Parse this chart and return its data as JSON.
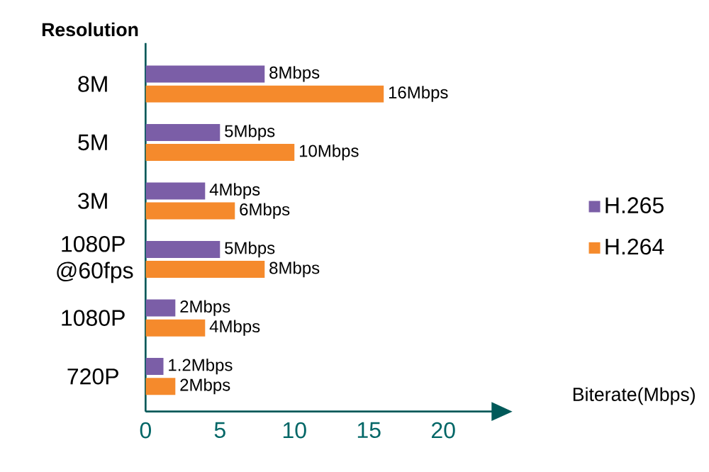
{
  "chart_data": {
    "type": "bar",
    "orientation": "horizontal",
    "ylabel": "Resolution",
    "xlabel": "Biterate(Mbps)",
    "categories": [
      "8M",
      "5M",
      "3M",
      "1080P @60fps",
      "1080P",
      "720P"
    ],
    "series": [
      {
        "name": "H.265",
        "color": "#7b5ea7",
        "values": [
          8,
          5,
          4,
          5,
          2,
          1.2
        ],
        "value_labels": [
          "8Mbps",
          "5Mbps",
          "4Mbps",
          "5Mbps",
          "2Mbps",
          "1.2Mbps"
        ]
      },
      {
        "name": "H.264",
        "color": "#f58a2c",
        "values": [
          16,
          10,
          6,
          8,
          4,
          2
        ],
        "value_labels": [
          "16Mbps",
          "10Mbps",
          "6Mbps",
          "8Mbps",
          "4Mbps",
          "2Mbps"
        ]
      }
    ],
    "xlim": [
      0,
      23.5
    ],
    "xticks": [
      0,
      5,
      10,
      15,
      20
    ],
    "legend": "right",
    "grid": false
  }
}
